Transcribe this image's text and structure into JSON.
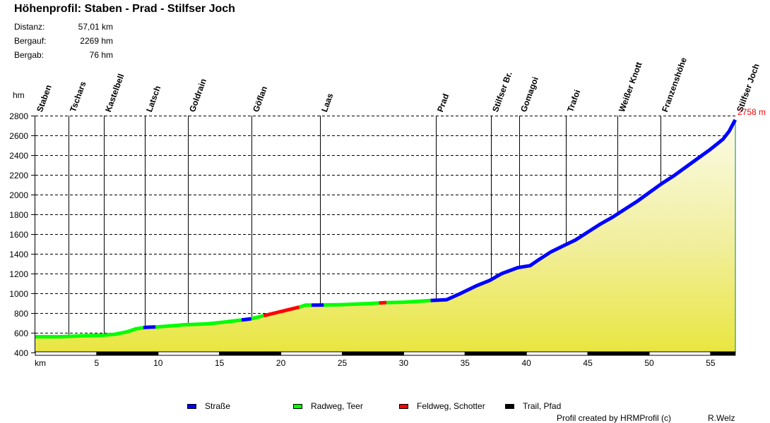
{
  "header": {
    "title": "Höhenprofil: Staben - Prad - Stilfser Joch",
    "stats": [
      {
        "label": "Distanz:",
        "value": "57,01 km"
      },
      {
        "label": "Bergauf:",
        "value": "2269 hm"
      },
      {
        "label": "Bergab:",
        "value": "76 hm"
      }
    ]
  },
  "max_label": "2758 m",
  "legend": [
    {
      "label": "Straße",
      "color": "#0000ff"
    },
    {
      "label": "Radweg, Teer",
      "color": "#00ff00"
    },
    {
      "label": "Feldweg, Schotter",
      "color": "#ff0000"
    },
    {
      "label": "Trail, Pfad",
      "color": "#000000"
    }
  ],
  "footer": {
    "credit": "Profil created by HRMProfil (c)",
    "author": "R.Welz"
  },
  "chart_data": {
    "type": "area",
    "title": "Höhenprofil: Staben - Prad - Stilfser Joch",
    "xlabel": "km",
    "ylabel": "hm",
    "xlim": [
      0,
      57.01
    ],
    "ylim": [
      400,
      2800
    ],
    "grid": "horizontal dashed",
    "y_ticks": [
      "2800",
      "2600",
      "2400",
      "2200",
      "2000",
      "1800",
      "1600",
      "1400",
      "1200",
      "1000",
      "800",
      "600",
      "400"
    ],
    "x_ticks": [
      "km",
      "5",
      "10",
      "15",
      "20",
      "25",
      "30",
      "35",
      "40",
      "45",
      "50",
      "55"
    ],
    "waypoints": [
      {
        "name": "Staben",
        "km": 0.0
      },
      {
        "name": "Tschars",
        "km": 2.7
      },
      {
        "name": "Kastelbell",
        "km": 5.6
      },
      {
        "name": "Latsch",
        "km": 8.9
      },
      {
        "name": "Goldrain",
        "km": 12.4
      },
      {
        "name": "Göflan",
        "km": 17.6
      },
      {
        "name": "Laas",
        "km": 23.2
      },
      {
        "name": "Prad",
        "km": 32.6
      },
      {
        "name": "Stilfser Br.",
        "km": 37.1
      },
      {
        "name": "Gomagoi",
        "km": 39.4
      },
      {
        "name": "Trafoi",
        "km": 43.2
      },
      {
        "name": "Weißer Knott",
        "km": 47.4
      },
      {
        "name": "Franzenshöhe",
        "km": 50.9
      },
      {
        "name": "Stilfser Joch",
        "km": 57.01
      }
    ],
    "series": [
      {
        "name": "Elevation",
        "x": [
          0,
          2,
          4,
          5.5,
          6.5,
          7.5,
          8.2,
          9,
          10,
          12,
          14,
          15.5,
          16.5,
          17.5,
          18.5,
          19.5,
          20.5,
          21.5,
          22,
          23,
          25,
          27,
          28.5,
          30,
          32,
          33.5,
          34.5,
          36,
          37,
          38,
          39.3,
          40.3,
          41,
          42,
          43,
          44,
          45,
          46,
          47,
          48,
          49,
          50,
          51,
          52,
          53,
          54,
          55,
          56,
          56.5,
          57.01
        ],
        "y": [
          560,
          560,
          570,
          575,
          585,
          610,
          640,
          655,
          660,
          680,
          690,
          710,
          725,
          740,
          770,
          800,
          830,
          860,
          880,
          880,
          885,
          895,
          905,
          910,
          925,
          935,
          990,
          1080,
          1130,
          1200,
          1260,
          1280,
          1340,
          1420,
          1480,
          1540,
          1620,
          1700,
          1770,
          1850,
          1930,
          2020,
          2110,
          2190,
          2280,
          2370,
          2460,
          2560,
          2640,
          2758
        ]
      },
      {
        "name": "Segments",
        "values": [
          {
            "from": 0,
            "to": 8.8,
            "surface": "Radweg, Teer"
          },
          {
            "from": 8.8,
            "to": 9.8,
            "surface": "Straße"
          },
          {
            "from": 9.8,
            "to": 16.8,
            "surface": "Radweg, Teer"
          },
          {
            "from": 16.8,
            "to": 17.6,
            "surface": "Straße"
          },
          {
            "from": 17.6,
            "to": 18.6,
            "surface": "Radweg, Teer"
          },
          {
            "from": 18.6,
            "to": 21.5,
            "surface": "Feldweg, Schotter"
          },
          {
            "from": 21.5,
            "to": 22.5,
            "surface": "Radweg, Teer"
          },
          {
            "from": 22.5,
            "to": 23.5,
            "surface": "Straße"
          },
          {
            "from": 23.5,
            "to": 28.0,
            "surface": "Radweg, Teer"
          },
          {
            "from": 28.0,
            "to": 28.6,
            "surface": "Feldweg, Schotter"
          },
          {
            "from": 28.6,
            "to": 32.2,
            "surface": "Radweg, Teer"
          },
          {
            "from": 32.2,
            "to": 57.01,
            "surface": "Straße"
          }
        ]
      }
    ],
    "annotations": [
      "2758 m"
    ]
  }
}
